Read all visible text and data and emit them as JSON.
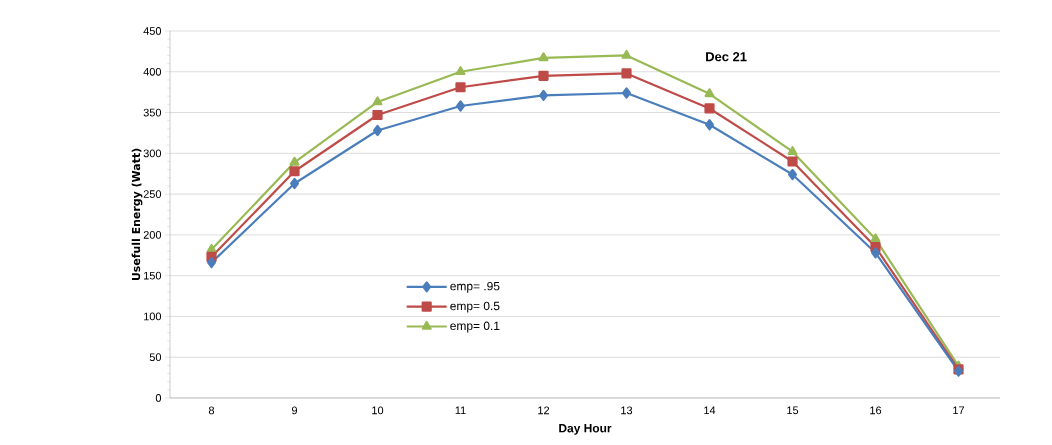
{
  "chart_data": {
    "type": "line",
    "title": "Dec 21",
    "xlabel": "Day Hour",
    "ylabel": "Usefull Energy (Watt)",
    "categories": [
      "8",
      "9",
      "10",
      "11",
      "12",
      "13",
      "14",
      "15",
      "16",
      "17"
    ],
    "series": [
      {
        "name": "emp= .95",
        "color": "#4a7ebb",
        "marker": "diamond",
        "values": [
          166,
          263,
          328,
          358,
          371,
          374,
          335,
          274,
          178,
          33
        ]
      },
      {
        "name": "emp= 0.5",
        "color": "#be4b48",
        "marker": "square",
        "values": [
          173,
          278,
          347,
          381,
          395,
          398,
          355,
          290,
          185,
          35
        ]
      },
      {
        "name": "emp= 0.1",
        "color": "#98b954",
        "marker": "triangle",
        "values": [
          182,
          289,
          363,
          400,
          417,
          420,
          373,
          302,
          195,
          39
        ]
      }
    ],
    "ylim": [
      0,
      450
    ],
    "yticks": [
      0,
      50,
      100,
      150,
      200,
      250,
      300,
      350,
      400,
      450
    ],
    "grid": "y",
    "legend": "bottom left",
    "line_style": "solid"
  }
}
